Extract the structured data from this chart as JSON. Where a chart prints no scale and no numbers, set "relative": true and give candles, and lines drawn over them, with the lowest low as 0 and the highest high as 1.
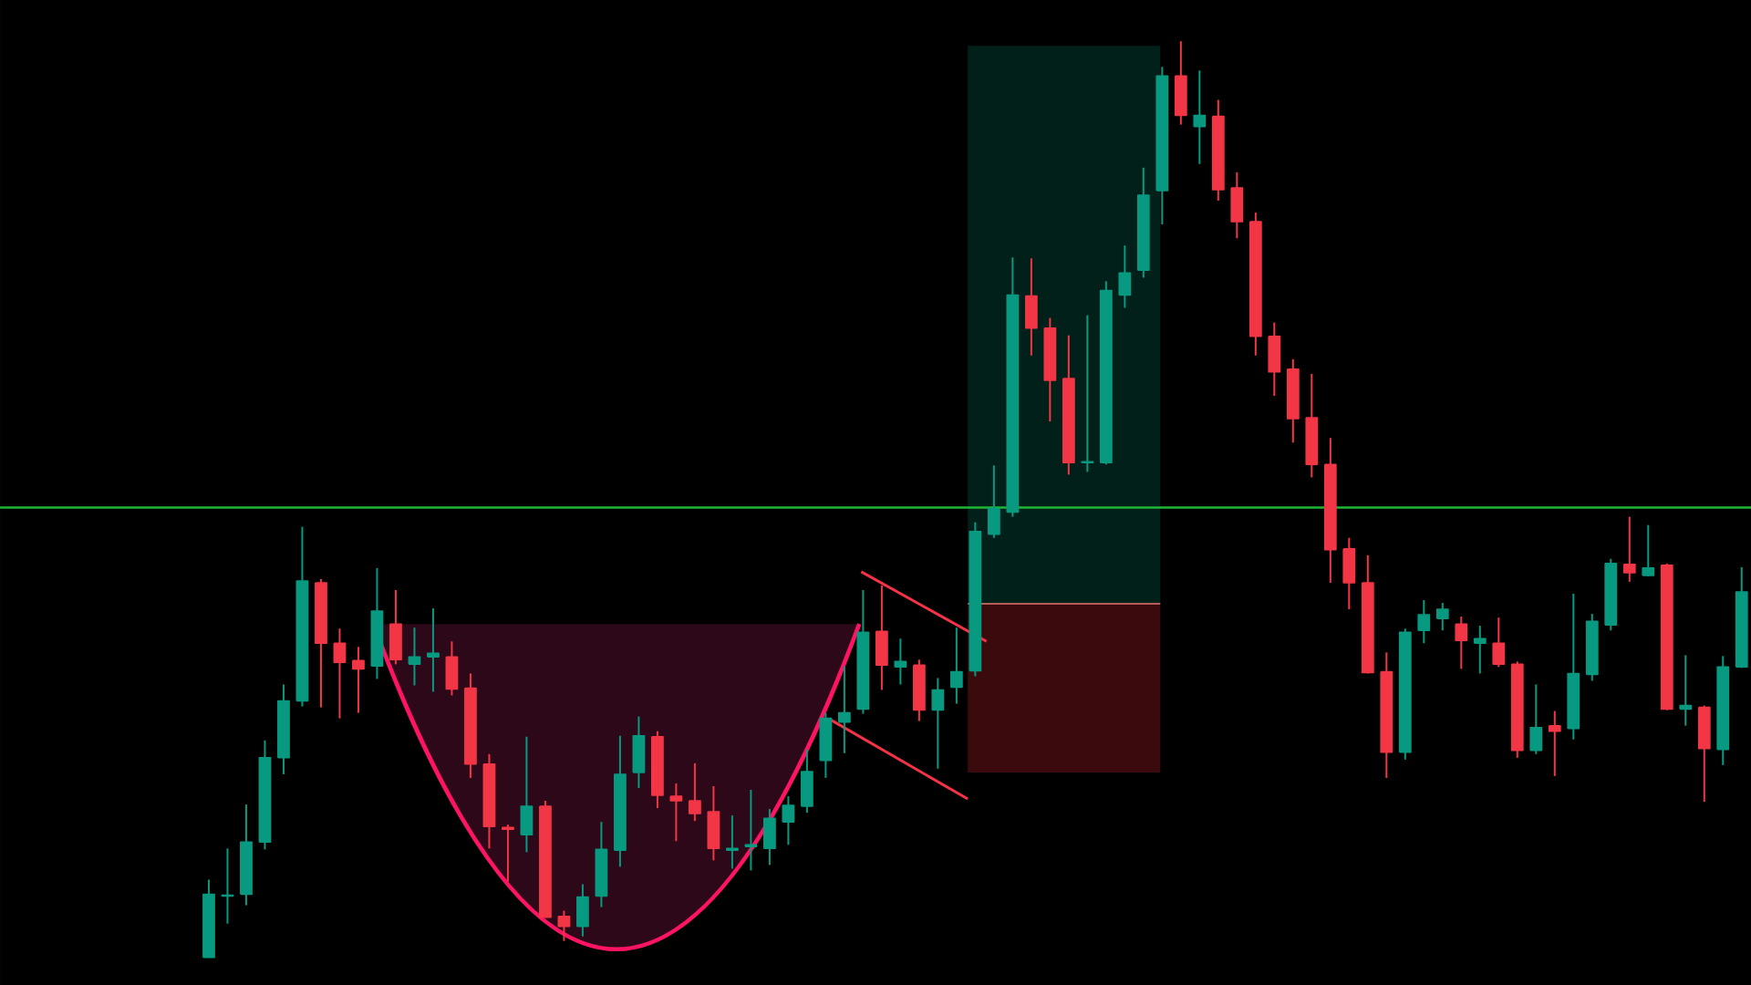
{
  "chart_data": {
    "type": "candlestick",
    "relative": true,
    "categories": [
      null,
      null,
      null,
      null,
      null,
      null,
      null,
      null,
      null,
      null,
      null,
      null,
      null,
      null,
      null,
      null,
      null,
      null,
      null,
      null,
      null,
      null,
      null,
      null,
      null,
      null,
      null,
      null,
      null,
      null,
      null,
      null,
      null,
      null,
      null,
      null,
      null,
      null,
      null,
      null,
      null,
      null,
      null,
      null,
      null,
      null,
      null,
      null,
      null,
      null,
      null,
      null,
      null,
      null,
      null,
      null,
      null,
      null,
      null,
      null,
      null,
      null,
      null,
      null,
      null,
      null,
      null,
      null,
      null,
      null,
      null,
      null,
      null,
      null,
      null,
      null,
      null,
      null,
      null,
      null,
      null,
      null,
      null
    ],
    "ohlc": [
      [
        0.0,
        0.085,
        0.0,
        0.069
      ],
      [
        0.067,
        0.119,
        0.037,
        0.068
      ],
      [
        0.069,
        0.167,
        0.057,
        0.126
      ],
      [
        0.126,
        0.237,
        0.118,
        0.218
      ],
      [
        0.218,
        0.298,
        0.2,
        0.28
      ],
      [
        0.28,
        0.47,
        0.274,
        0.411
      ],
      [
        0.409,
        0.413,
        0.273,
        0.343
      ],
      [
        0.343,
        0.359,
        0.261,
        0.322
      ],
      [
        0.324,
        0.339,
        0.267,
        0.315
      ],
      [
        0.318,
        0.425,
        0.304,
        0.378
      ],
      [
        0.364,
        0.401,
        0.32,
        0.325
      ],
      [
        0.32,
        0.36,
        0.297,
        0.328
      ],
      [
        0.328,
        0.381,
        0.29,
        0.332
      ],
      [
        0.328,
        0.345,
        0.286,
        0.293
      ],
      [
        0.294,
        0.31,
        0.196,
        0.211
      ],
      [
        0.211,
        0.222,
        0.119,
        0.143
      ],
      [
        0.142,
        0.145,
        0.083,
        0.14
      ],
      [
        0.134,
        0.241,
        0.115,
        0.165
      ],
      [
        0.165,
        0.171,
        0.044,
        0.044
      ],
      [
        0.045,
        0.051,
        0.018,
        0.034
      ],
      [
        0.034,
        0.08,
        0.023,
        0.066
      ],
      [
        0.067,
        0.148,
        0.055,
        0.118
      ],
      [
        0.117,
        0.242,
        0.099,
        0.2
      ],
      [
        0.202,
        0.263,
        0.185,
        0.242
      ],
      [
        0.241,
        0.247,
        0.163,
        0.177
      ],
      [
        0.176,
        0.19,
        0.127,
        0.171
      ],
      [
        0.171,
        0.212,
        0.149,
        0.157
      ],
      [
        0.159,
        0.187,
        0.106,
        0.119
      ],
      [
        0.117,
        0.155,
        0.097,
        0.119
      ],
      [
        0.121,
        0.183,
        0.095,
        0.123
      ],
      [
        0.119,
        0.162,
        0.101,
        0.152
      ],
      [
        0.148,
        0.176,
        0.123,
        0.166
      ],
      [
        0.165,
        0.227,
        0.158,
        0.203
      ],
      [
        0.215,
        0.267,
        0.196,
        0.261
      ],
      [
        0.257,
        0.318,
        0.223,
        0.267
      ],
      [
        0.271,
        0.401,
        0.266,
        0.355
      ],
      [
        0.356,
        0.406,
        0.292,
        0.319
      ],
      [
        0.317,
        0.348,
        0.298,
        0.323
      ],
      [
        0.319,
        0.325,
        0.258,
        0.27
      ],
      [
        0.27,
        0.305,
        0.206,
        0.292
      ],
      [
        0.295,
        0.36,
        0.277,
        0.312
      ],
      [
        0.313,
        0.475,
        0.307,
        0.465
      ],
      [
        0.462,
        0.537,
        0.458,
        0.49
      ],
      [
        0.486,
        0.764,
        0.481,
        0.723
      ],
      [
        0.722,
        0.763,
        0.657,
        0.687
      ],
      [
        0.687,
        0.698,
        0.585,
        0.63
      ],
      [
        0.632,
        0.679,
        0.527,
        0.54
      ],
      [
        0.54,
        0.701,
        0.53,
        0.541
      ],
      [
        0.54,
        0.738,
        0.538,
        0.728
      ],
      [
        0.723,
        0.777,
        0.709,
        0.747
      ],
      [
        0.75,
        0.862,
        0.742,
        0.832
      ],
      [
        0.837,
        0.972,
        0.8,
        0.962
      ],
      [
        0.962,
        1.0,
        0.909,
        0.919
      ],
      [
        0.907,
        0.968,
        0.866,
        0.919
      ],
      [
        0.918,
        0.936,
        0.826,
        0.838
      ],
      [
        0.84,
        0.857,
        0.785,
        0.803
      ],
      [
        0.803,
        0.813,
        0.657,
        0.678
      ],
      [
        0.678,
        0.693,
        0.613,
        0.639
      ],
      [
        0.642,
        0.653,
        0.562,
        0.588
      ],
      [
        0.589,
        0.637,
        0.524,
        0.538
      ],
      [
        0.538,
        0.567,
        0.409,
        0.445
      ],
      [
        0.446,
        0.458,
        0.38,
        0.409
      ],
      [
        0.409,
        0.439,
        0.31,
        0.311
      ],
      [
        0.312,
        0.333,
        0.196,
        0.224
      ],
      [
        0.224,
        0.359,
        0.216,
        0.355
      ],
      [
        0.357,
        0.39,
        0.343,
        0.374
      ],
      [
        0.37,
        0.387,
        0.357,
        0.38
      ],
      [
        0.364,
        0.372,
        0.315,
        0.346
      ],
      [
        0.343,
        0.362,
        0.31,
        0.348
      ],
      [
        0.343,
        0.371,
        0.317,
        0.32
      ],
      [
        0.32,
        0.323,
        0.218,
        0.226
      ],
      [
        0.226,
        0.298,
        0.222,
        0.251
      ],
      [
        0.253,
        0.269,
        0.198,
        0.247
      ],
      [
        0.25,
        0.397,
        0.238,
        0.31
      ],
      [
        0.309,
        0.375,
        0.302,
        0.367
      ],
      [
        0.363,
        0.435,
        0.357,
        0.43
      ],
      [
        0.429,
        0.481,
        0.41,
        0.42
      ],
      [
        0.417,
        0.472,
        0.416,
        0.425
      ],
      [
        0.428,
        0.43,
        0.27,
        0.271
      ],
      [
        0.271,
        0.33,
        0.253,
        0.275
      ],
      [
        0.273,
        0.275,
        0.17,
        0.228
      ],
      [
        0.227,
        0.329,
        0.21,
        0.317
      ],
      [
        0.317,
        0.426,
        0.316,
        0.399
      ]
    ],
    "colors": [
      "#089981",
      "#089981",
      "#089981",
      "#089981",
      "#089981",
      "#089981",
      "#f23645",
      "#f23645",
      "#f23645",
      "#089981",
      "#f23645",
      "#089981",
      "#089981",
      "#f23645",
      "#f23645",
      "#f23645",
      "#f23645",
      "#089981",
      "#f23645",
      "#f23645",
      "#089981",
      "#089981",
      "#089981",
      "#089981",
      "#f23645",
      "#f23645",
      "#f23645",
      "#f23645",
      "#089981",
      "#089981",
      "#089981",
      "#089981",
      "#089981",
      "#089981",
      "#089981",
      "#089981",
      "#f23645",
      "#089981",
      "#f23645",
      "#089981",
      "#089981",
      "#089981",
      "#089981",
      "#089981",
      "#f23645",
      "#f23645",
      "#f23645",
      "#089981",
      "#089981",
      "#089981",
      "#089981",
      "#089981",
      "#f23645",
      "#089981",
      "#f23645",
      "#f23645",
      "#f23645",
      "#f23645",
      "#f23645",
      "#f23645",
      "#f23645",
      "#f23645",
      "#f23645",
      "#f23645",
      "#089981",
      "#089981",
      "#089981",
      "#f23645",
      "#089981",
      "#f23645",
      "#f23645",
      "#089981",
      "#f23645",
      "#089981",
      "#089981",
      "#089981",
      "#f23645",
      "#089981",
      "#f23645",
      "#089981",
      "#f23645",
      "#089981",
      "#089981"
    ],
    "ref_lines": [
      {
        "axis": "y",
        "value": 0.491,
        "color": "#1fb634"
      }
    ]
  }
}
